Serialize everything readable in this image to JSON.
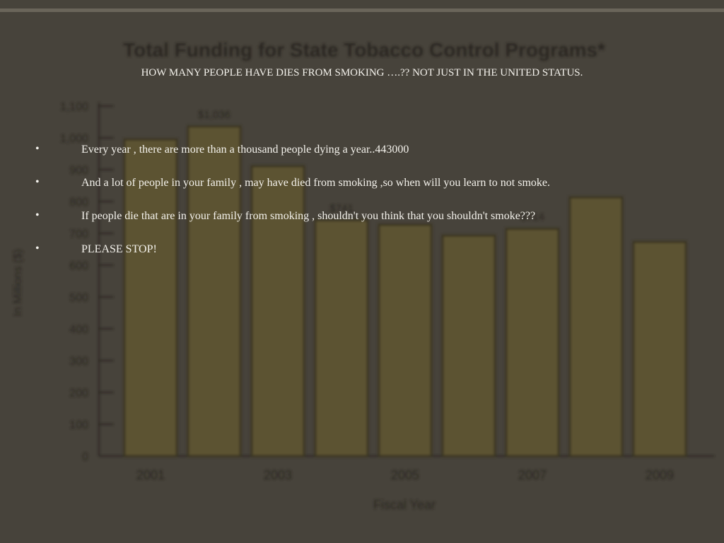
{
  "chart_data": {
    "type": "bar",
    "title": "Total Funding for State Tobacco Control Programs*",
    "y_label": "In Millions ($)",
    "x_label": "Fiscal Year",
    "categories": [
      "2001",
      null,
      "2003",
      null,
      "2005",
      null,
      "2007",
      null,
      "2009"
    ],
    "values": [
      995,
      1036,
      911,
      741,
      727,
      693,
      714,
      813,
      673
    ],
    "value_labels": [
      null,
      "$1,036",
      null,
      "$741",
      null,
      null,
      "$714",
      null,
      null
    ],
    "color": "#5c5232",
    "ylim": [
      0,
      1100
    ],
    "yticks": [
      0,
      100,
      200,
      300,
      400,
      500,
      600,
      700,
      800,
      900,
      {
        "value": 1000,
        "label": "1,000"
      },
      {
        "value": 1100,
        "label": "1,100"
      }
    ]
  },
  "slide": {
    "title": "HOW MANY PEOPLE HAVE DIES FROM SMOKING ….?? NOT JUST  IN THE UNITED STATUS.",
    "bullets": [
      "Every year , there are more than a thousand people dying a year..443000",
      "And a lot of people in your family , may have died from smoking ,so when will you learn to not smoke.",
      "If people die that are in your family from smoking , shouldn't you think that you shouldn't smoke???",
      "PLEASE STOP!"
    ]
  }
}
